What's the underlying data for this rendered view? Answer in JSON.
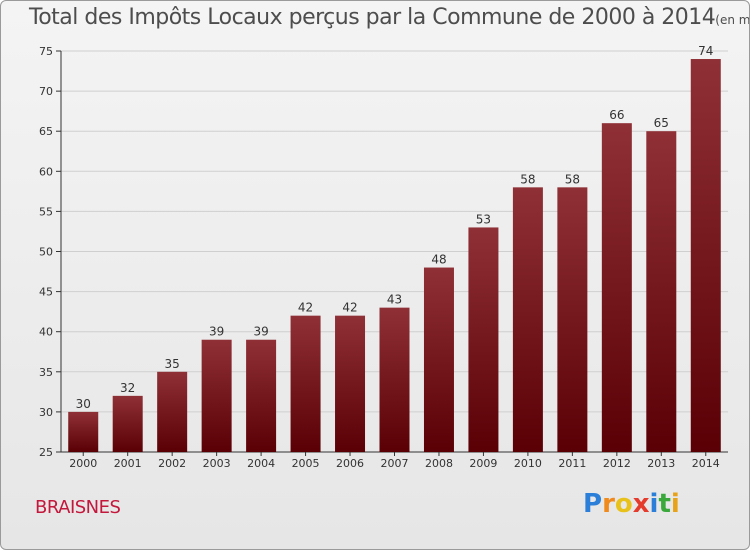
{
  "title": "Total des Impôts Locaux perçus par la Commune de 2000 à 2014",
  "unit": "(en milliers d'€)",
  "commune": "BRAISNES",
  "brand": {
    "letters": [
      "P",
      "r",
      "o",
      "x",
      "i",
      "t",
      "i"
    ],
    "colors": [
      "#2b7fd8",
      "#f08a1c",
      "#e8c21a",
      "#e53b2c",
      "#2b7fd8",
      "#3aa83a",
      "#e8a21a"
    ]
  },
  "colors": {
    "bar_top": "#8f3036",
    "bar_bottom": "#5a0005",
    "axis": "#333333",
    "grid": "#cfcfcf",
    "text": "#333333"
  },
  "chart_data": {
    "type": "bar",
    "title": "Total des Impôts Locaux perçus par la Commune de 2000 à 2014",
    "xlabel": "",
    "ylabel": "",
    "categories": [
      "2000",
      "2001",
      "2002",
      "2003",
      "2004",
      "2005",
      "2006",
      "2007",
      "2008",
      "2009",
      "2010",
      "2011",
      "2012",
      "2013",
      "2014"
    ],
    "values": [
      30,
      32,
      35,
      39,
      39,
      42,
      42,
      43,
      48,
      53,
      58,
      58,
      66,
      65,
      74
    ],
    "ylim": [
      25,
      75
    ],
    "yticks": [
      25,
      30,
      35,
      40,
      45,
      50,
      55,
      60,
      65,
      70,
      75
    ],
    "grid": true
  }
}
